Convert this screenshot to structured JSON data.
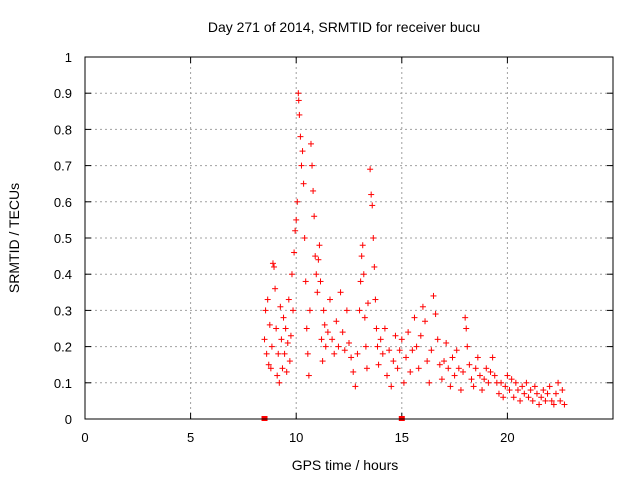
{
  "chart_data": {
    "type": "scatter",
    "title": "Day 271 of 2014, SRMTID for receiver bucu",
    "xlabel": "GPS time / hours",
    "ylabel": "SRMTID / TECUs",
    "xlim": [
      0,
      25
    ],
    "ylim": [
      0,
      1
    ],
    "xticks": [
      0,
      5,
      10,
      15,
      20
    ],
    "yticks": [
      0,
      0.1,
      0.2,
      0.3,
      0.4,
      0.5,
      0.6,
      0.7,
      0.8,
      0.9,
      1
    ],
    "grid": true,
    "legend": "none",
    "color": "#ff0000",
    "zero_value_points": [
      [
        8.5,
        0
      ],
      [
        15.0,
        0
      ]
    ],
    "series": [
      {
        "name": "SRMTID",
        "points": [
          [
            8.5,
            0.22
          ],
          [
            8.55,
            0.3
          ],
          [
            8.6,
            0.18
          ],
          [
            8.65,
            0.33
          ],
          [
            8.7,
            0.15
          ],
          [
            8.75,
            0.26
          ],
          [
            8.8,
            0.14
          ],
          [
            8.85,
            0.2
          ],
          [
            8.9,
            0.43
          ],
          [
            8.95,
            0.42
          ],
          [
            9.0,
            0.36
          ],
          [
            9.05,
            0.25
          ],
          [
            9.1,
            0.12
          ],
          [
            9.15,
            0.18
          ],
          [
            9.2,
            0.1
          ],
          [
            9.25,
            0.31
          ],
          [
            9.3,
            0.22
          ],
          [
            9.35,
            0.14
          ],
          [
            9.4,
            0.28
          ],
          [
            9.45,
            0.18
          ],
          [
            9.5,
            0.25
          ],
          [
            9.55,
            0.13
          ],
          [
            9.6,
            0.21
          ],
          [
            9.65,
            0.33
          ],
          [
            9.7,
            0.16
          ],
          [
            9.75,
            0.23
          ],
          [
            9.8,
            0.4
          ],
          [
            9.85,
            0.3
          ],
          [
            9.9,
            0.46
          ],
          [
            9.95,
            0.52
          ],
          [
            10.0,
            0.55
          ],
          [
            10.05,
            0.6
          ],
          [
            10.1,
            0.9
          ],
          [
            10.12,
            0.88
          ],
          [
            10.15,
            0.84
          ],
          [
            10.2,
            0.78
          ],
          [
            10.25,
            0.7
          ],
          [
            10.3,
            0.74
          ],
          [
            10.35,
            0.65
          ],
          [
            10.4,
            0.5
          ],
          [
            10.45,
            0.38
          ],
          [
            10.5,
            0.25
          ],
          [
            10.55,
            0.18
          ],
          [
            10.6,
            0.12
          ],
          [
            10.65,
            0.3
          ],
          [
            10.7,
            0.76
          ],
          [
            10.75,
            0.7
          ],
          [
            10.8,
            0.63
          ],
          [
            10.85,
            0.56
          ],
          [
            10.9,
            0.45
          ],
          [
            10.95,
            0.4
          ],
          [
            11.0,
            0.35
          ],
          [
            11.05,
            0.44
          ],
          [
            11.1,
            0.48
          ],
          [
            11.15,
            0.38
          ],
          [
            11.2,
            0.22
          ],
          [
            11.25,
            0.16
          ],
          [
            11.3,
            0.3
          ],
          [
            11.35,
            0.26
          ],
          [
            11.4,
            0.2
          ],
          [
            11.5,
            0.24
          ],
          [
            11.6,
            0.33
          ],
          [
            11.7,
            0.22
          ],
          [
            11.8,
            0.18
          ],
          [
            11.9,
            0.27
          ],
          [
            12.0,
            0.2
          ],
          [
            12.1,
            0.35
          ],
          [
            12.2,
            0.24
          ],
          [
            12.3,
            0.19
          ],
          [
            12.4,
            0.3
          ],
          [
            12.5,
            0.21
          ],
          [
            12.6,
            0.17
          ],
          [
            12.7,
            0.13
          ],
          [
            12.8,
            0.09
          ],
          [
            12.9,
            0.18
          ],
          [
            13.0,
            0.3
          ],
          [
            13.05,
            0.38
          ],
          [
            13.1,
            0.45
          ],
          [
            13.15,
            0.48
          ],
          [
            13.2,
            0.4
          ],
          [
            13.25,
            0.28
          ],
          [
            13.3,
            0.2
          ],
          [
            13.35,
            0.14
          ],
          [
            13.4,
            0.32
          ],
          [
            13.5,
            0.69
          ],
          [
            13.55,
            0.62
          ],
          [
            13.6,
            0.59
          ],
          [
            13.65,
            0.5
          ],
          [
            13.7,
            0.42
          ],
          [
            13.75,
            0.33
          ],
          [
            13.8,
            0.25
          ],
          [
            13.85,
            0.2
          ],
          [
            13.9,
            0.15
          ],
          [
            14.0,
            0.22
          ],
          [
            14.1,
            0.18
          ],
          [
            14.2,
            0.25
          ],
          [
            14.3,
            0.12
          ],
          [
            14.4,
            0.19
          ],
          [
            14.5,
            0.09
          ],
          [
            14.6,
            0.16
          ],
          [
            14.7,
            0.23
          ],
          [
            14.8,
            0.14
          ],
          [
            14.9,
            0.19
          ],
          [
            15.0,
            0.22
          ],
          [
            15.1,
            0.1
          ],
          [
            15.2,
            0.17
          ],
          [
            15.3,
            0.24
          ],
          [
            15.4,
            0.13
          ],
          [
            15.5,
            0.19
          ],
          [
            15.6,
            0.28
          ],
          [
            15.7,
            0.2
          ],
          [
            15.8,
            0.14
          ],
          [
            15.9,
            0.23
          ],
          [
            16.0,
            0.31
          ],
          [
            16.1,
            0.27
          ],
          [
            16.2,
            0.16
          ],
          [
            16.3,
            0.1
          ],
          [
            16.4,
            0.19
          ],
          [
            16.5,
            0.34
          ],
          [
            16.6,
            0.29
          ],
          [
            16.7,
            0.22
          ],
          [
            16.8,
            0.15
          ],
          [
            16.9,
            0.11
          ],
          [
            17.0,
            0.16
          ],
          [
            17.1,
            0.21
          ],
          [
            17.2,
            0.14
          ],
          [
            17.3,
            0.09
          ],
          [
            17.4,
            0.17
          ],
          [
            17.5,
            0.12
          ],
          [
            17.6,
            0.19
          ],
          [
            17.7,
            0.14
          ],
          [
            17.8,
            0.08
          ],
          [
            17.9,
            0.13
          ],
          [
            18.0,
            0.28
          ],
          [
            18.05,
            0.25
          ],
          [
            18.1,
            0.2
          ],
          [
            18.2,
            0.15
          ],
          [
            18.3,
            0.11
          ],
          [
            18.4,
            0.09
          ],
          [
            18.5,
            0.14
          ],
          [
            18.6,
            0.17
          ],
          [
            18.7,
            0.12
          ],
          [
            18.8,
            0.08
          ],
          [
            18.9,
            0.11
          ],
          [
            19.0,
            0.14
          ],
          [
            19.1,
            0.1
          ],
          [
            19.2,
            0.13
          ],
          [
            19.3,
            0.17
          ],
          [
            19.4,
            0.12
          ],
          [
            19.5,
            0.1
          ],
          [
            19.6,
            0.07
          ],
          [
            19.7,
            0.1
          ],
          [
            19.8,
            0.06
          ],
          [
            19.9,
            0.09
          ],
          [
            20.0,
            0.12
          ],
          [
            20.1,
            0.08
          ],
          [
            20.2,
            0.11
          ],
          [
            20.3,
            0.06
          ],
          [
            20.4,
            0.1
          ],
          [
            20.5,
            0.08
          ],
          [
            20.6,
            0.05
          ],
          [
            20.7,
            0.09
          ],
          [
            20.8,
            0.07
          ],
          [
            20.9,
            0.1
          ],
          [
            21.0,
            0.06
          ],
          [
            21.1,
            0.08
          ],
          [
            21.2,
            0.05
          ],
          [
            21.3,
            0.09
          ],
          [
            21.4,
            0.07
          ],
          [
            21.5,
            0.04
          ],
          [
            21.6,
            0.06
          ],
          [
            21.7,
            0.08
          ],
          [
            21.8,
            0.05
          ],
          [
            21.9,
            0.07
          ],
          [
            22.0,
            0.09
          ],
          [
            22.1,
            0.05
          ],
          [
            22.2,
            0.04
          ],
          [
            22.3,
            0.07
          ],
          [
            22.4,
            0.1
          ],
          [
            22.5,
            0.05
          ],
          [
            22.6,
            0.08
          ],
          [
            22.7,
            0.04
          ]
        ]
      }
    ]
  }
}
